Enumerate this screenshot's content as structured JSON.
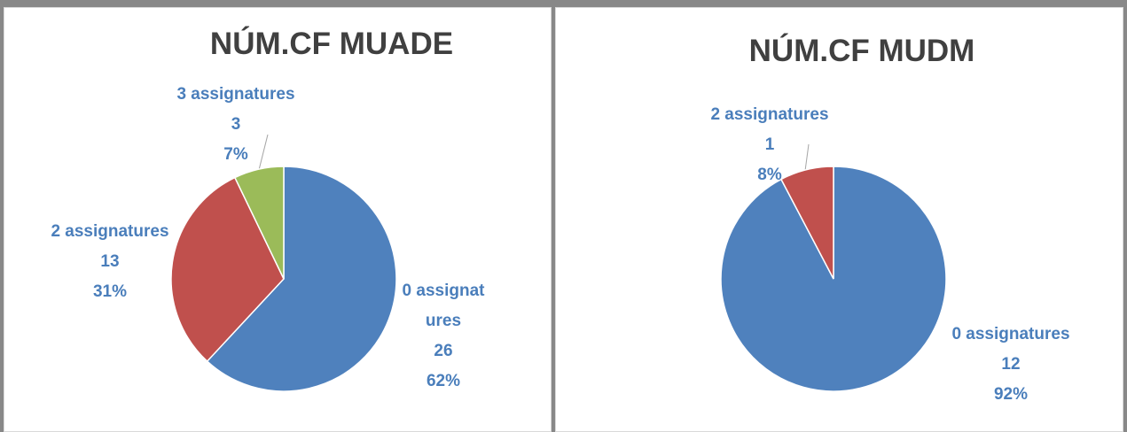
{
  "chart_data": [
    {
      "type": "pie",
      "title": "NÚM.CF MUADE",
      "categories": [
        "0 assignatures",
        "2 assignatures",
        "3 assignatures"
      ],
      "values": [
        26,
        13,
        3
      ],
      "percents": [
        62,
        31,
        7
      ],
      "percent_labels": [
        "62%",
        "31%",
        "7%"
      ],
      "colors": [
        "#4f81bd",
        "#c0504d",
        "#9bbb59"
      ]
    },
    {
      "type": "pie",
      "title": "NÚM.CF MUDM",
      "categories": [
        "0 assignatures",
        "2 assignatures"
      ],
      "values": [
        12,
        1
      ],
      "percents": [
        92,
        8
      ],
      "percent_labels": [
        "92%",
        "8%"
      ],
      "colors": [
        "#4f81bd",
        "#c0504d"
      ]
    }
  ]
}
